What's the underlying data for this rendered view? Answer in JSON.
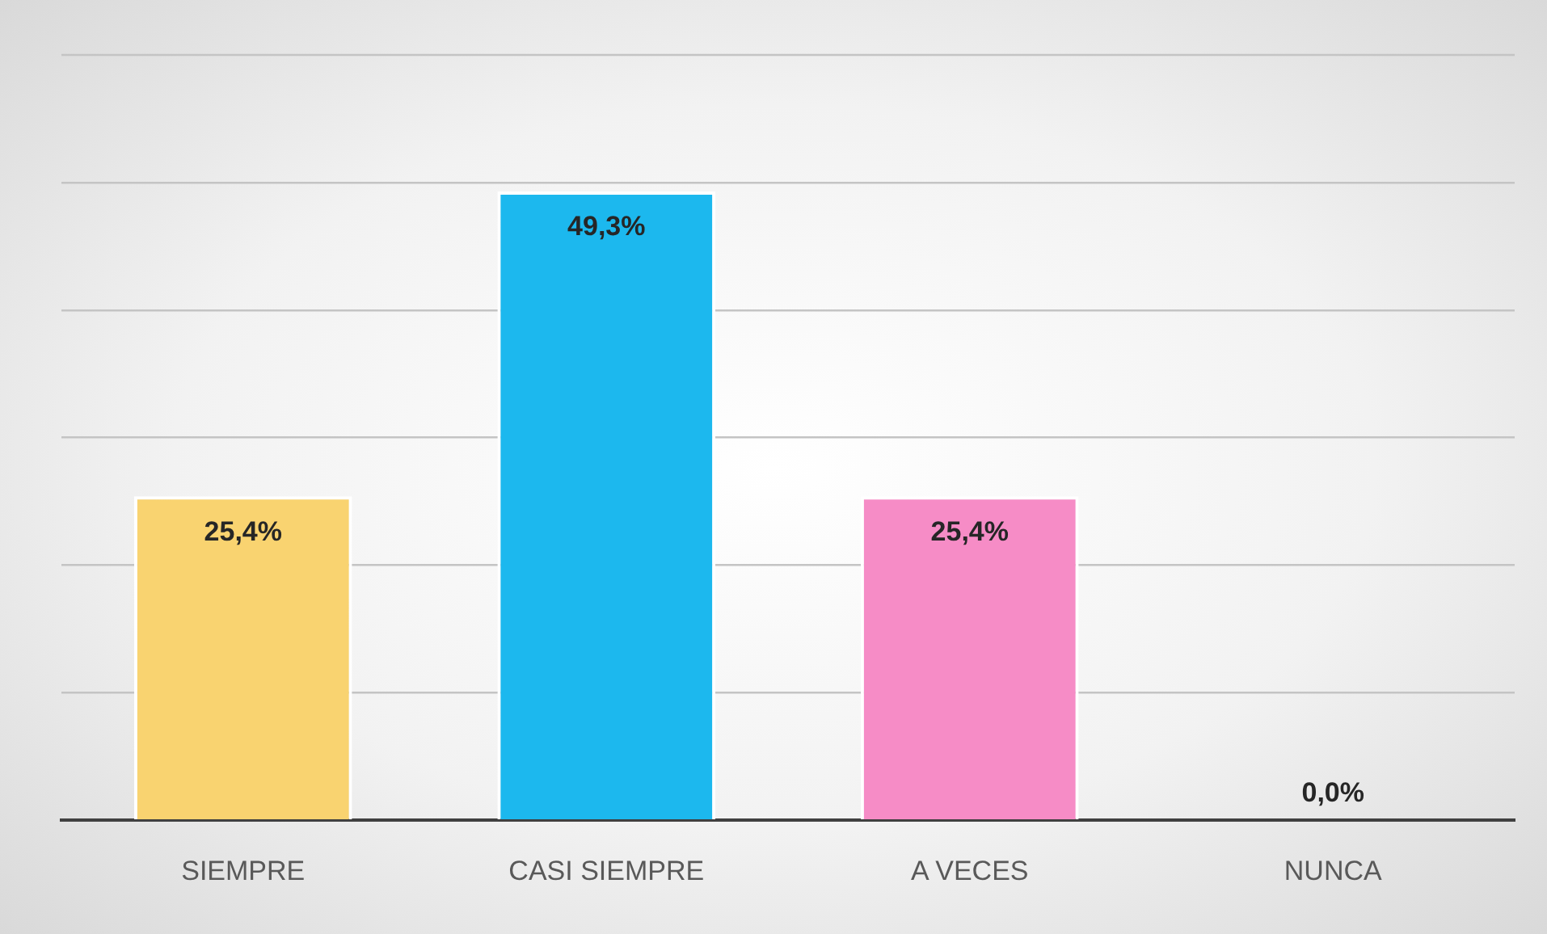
{
  "chart_data": {
    "type": "bar",
    "categories": [
      "SIEMPRE",
      "CASI SIEMPRE",
      "A VECES",
      "NUNCA"
    ],
    "values": [
      25.4,
      49.3,
      25.4,
      0.0
    ],
    "colors": [
      "#f9d370",
      "#1cb8ee",
      "#f68cc6",
      "#a6a6a6"
    ],
    "value_labels": [
      "25,4%",
      "49,3%",
      "25,4%",
      "0,0%"
    ],
    "ylim": [
      0,
      60
    ],
    "yticks": [
      {
        "value": 0,
        "label": null
      },
      {
        "value": 10,
        "label": null
      },
      {
        "value": 20,
        "label": null
      },
      {
        "value": 30,
        "label": null
      },
      {
        "value": 40,
        "label": null
      },
      {
        "value": 50,
        "label": null
      }
    ],
    "grid": "y",
    "tick_labels": "x"
  }
}
